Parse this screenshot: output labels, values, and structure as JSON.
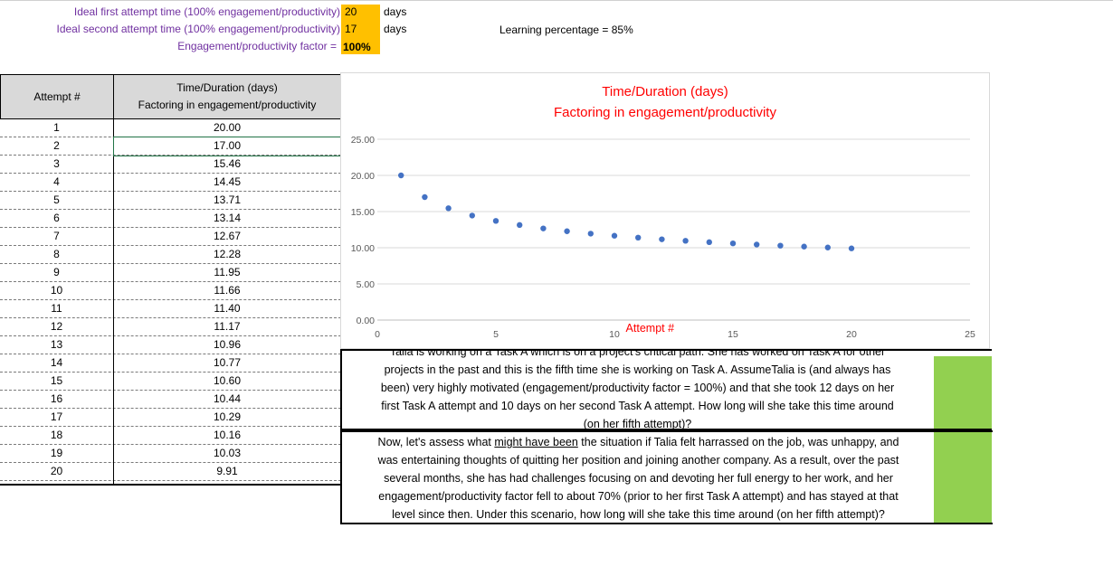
{
  "params": {
    "first_label": "Ideal first attempt time (100% engagement/productivity)",
    "first_value": "20",
    "first_unit": "days",
    "second_label": "Ideal second attempt time (100% engagement/productivity)",
    "second_value": "17",
    "second_unit": "days",
    "factor_label": "Engagement/productivity factor =",
    "factor_value": "100%",
    "learning": "Learning percentage = 85%"
  },
  "table": {
    "col1_header": "Attempt #",
    "col2_header_line1": "Time/Duration  (days)",
    "col2_header_line2": "Factoring in engagement/productivity",
    "rows": [
      [
        "1",
        "20.00"
      ],
      [
        "2",
        "17.00"
      ],
      [
        "3",
        "15.46"
      ],
      [
        "4",
        "14.45"
      ],
      [
        "5",
        "13.71"
      ],
      [
        "6",
        "13.14"
      ],
      [
        "7",
        "12.67"
      ],
      [
        "8",
        "12.28"
      ],
      [
        "9",
        "11.95"
      ],
      [
        "10",
        "11.66"
      ],
      [
        "11",
        "11.40"
      ],
      [
        "12",
        "11.17"
      ],
      [
        "13",
        "10.96"
      ],
      [
        "14",
        "10.77"
      ],
      [
        "15",
        "10.60"
      ],
      [
        "16",
        "10.44"
      ],
      [
        "17",
        "10.29"
      ],
      [
        "18",
        "10.16"
      ],
      [
        "19",
        "10.03"
      ],
      [
        "20",
        "9.91"
      ]
    ]
  },
  "chart_data": {
    "type": "scatter",
    "title_line1": "Time/Duration  (days)",
    "title_line2": "Factoring in engagement/productivity",
    "xlabel": "Attempt #",
    "ylabel": "",
    "xlim": [
      0,
      25
    ],
    "ylim": [
      0,
      25
    ],
    "x_ticks": [
      "0",
      "5",
      "10",
      "15",
      "20",
      "25"
    ],
    "y_ticks": [
      "0.00",
      "5.00",
      "10.00",
      "15.00",
      "20.00",
      "25.00"
    ],
    "grid": true,
    "marker_color": "#4472c4",
    "x": [
      1,
      2,
      3,
      4,
      5,
      6,
      7,
      8,
      9,
      10,
      11,
      12,
      13,
      14,
      15,
      16,
      17,
      18,
      19,
      20
    ],
    "y": [
      20.0,
      17.0,
      15.46,
      14.45,
      13.71,
      13.14,
      12.67,
      12.28,
      11.95,
      11.66,
      11.4,
      11.17,
      10.96,
      10.77,
      10.6,
      10.44,
      10.29,
      10.16,
      10.03,
      9.91
    ]
  },
  "text1": {
    "line1": "Talia is working on a Task A which is on a project's critical path. She has worked on Task A for other",
    "line2": "projects in the past and this is the fifth time she is working on Task A. AssumeTalia is (and always has",
    "line3": "been) very highly motivated (engagement/productivity factor = 100%) and that she took 12 days on her",
    "line4": "first Task A attempt and 10 days on her second Task A attempt. How long will she take this time around",
    "line5": "(on her fifth attempt)?"
  },
  "text2": {
    "line1_pre": "Now, let's assess what ",
    "line1_u": "might have been",
    "line1_post": " the situation if Talia felt harrassed on the job, was unhappy, and",
    "line2": "was entertaining thoughts of quitting her position and joining another company. As a result, over the past",
    "line3": "several months, she has had challenges focusing on and devoting her full energy to her work, and her",
    "line4": "engagement/productivity factor fell to about 70% (prior to her first Task A attempt) and has stayed at that",
    "line5": "level since then. Under this scenario, how long will she take this time around (on her fifth attempt)?"
  },
  "colors": {
    "purple": "#7030a0",
    "orange": "#ffc000",
    "green": "#92d050",
    "title_red": "#ff0000",
    "marker": "#4472c4"
  }
}
